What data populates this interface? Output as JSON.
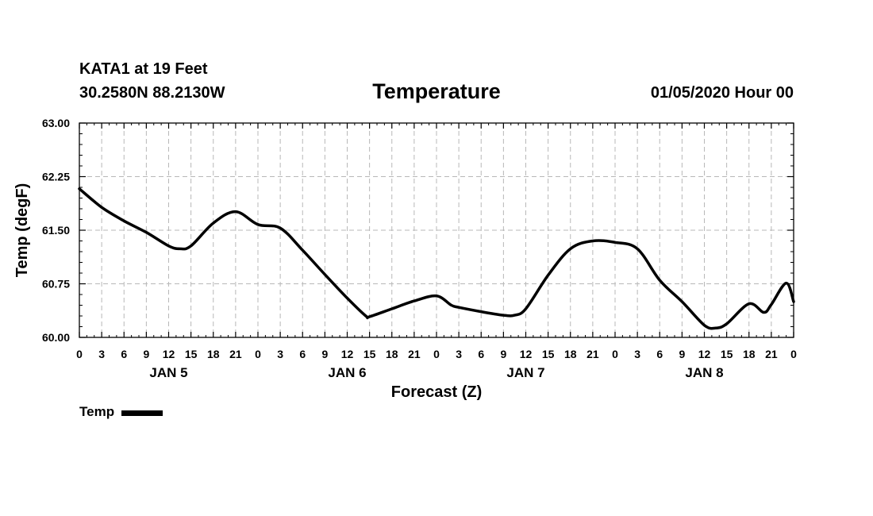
{
  "header": {
    "station": "KATA1 at 19 Feet",
    "location": "30.2580N 88.2130W",
    "datetime": "01/05/2020 Hour 00"
  },
  "chart_data": {
    "type": "line",
    "title": "Temperature",
    "xlabel": "Forecast (Z)",
    "ylabel": "Temp (degF)",
    "ylim": [
      60.0,
      63.0
    ],
    "xlim": [
      0,
      96
    ],
    "y_ticks": [
      "60.00",
      "60.75",
      "61.50",
      "62.25",
      "63.00"
    ],
    "y_tick_values": [
      60.0,
      60.75,
      61.5,
      62.25,
      63.0
    ],
    "x_ticks": [
      "0",
      "3",
      "6",
      "9",
      "12",
      "15",
      "18",
      "21",
      "0",
      "3",
      "6",
      "9",
      "12",
      "15",
      "18",
      "21",
      "0",
      "3",
      "6",
      "9",
      "12",
      "15",
      "18",
      "21",
      "0",
      "3",
      "6",
      "9",
      "12",
      "15",
      "18",
      "21",
      "0"
    ],
    "day_labels": [
      {
        "label": "JAN 5",
        "hour": 12
      },
      {
        "label": "JAN 6",
        "hour": 36
      },
      {
        "label": "JAN 7",
        "hour": 60
      },
      {
        "label": "JAN 8",
        "hour": 84
      }
    ],
    "grid": true,
    "series": [
      {
        "name": "Temp",
        "color": "#000000",
        "x": [
          0,
          3,
          6,
          9,
          12,
          13.5,
          15,
          18,
          21,
          24,
          27,
          30,
          33,
          36,
          38.5,
          39,
          42,
          45,
          48,
          50,
          51,
          54,
          57,
          58.5,
          60,
          63,
          66,
          69,
          72,
          75,
          78,
          81,
          84,
          85.5,
          87,
          90,
          92,
          93,
          95,
          96
        ],
        "values": [
          62.08,
          61.82,
          61.63,
          61.47,
          61.28,
          61.24,
          61.28,
          61.6,
          61.76,
          61.58,
          61.53,
          61.22,
          60.88,
          60.55,
          60.3,
          60.29,
          60.4,
          60.51,
          60.58,
          60.45,
          60.42,
          60.36,
          60.31,
          60.31,
          60.4,
          60.87,
          61.24,
          61.35,
          61.33,
          61.24,
          60.8,
          60.5,
          60.17,
          60.13,
          60.19,
          60.47,
          60.35,
          60.46,
          60.76,
          60.5
        ]
      }
    ]
  }
}
